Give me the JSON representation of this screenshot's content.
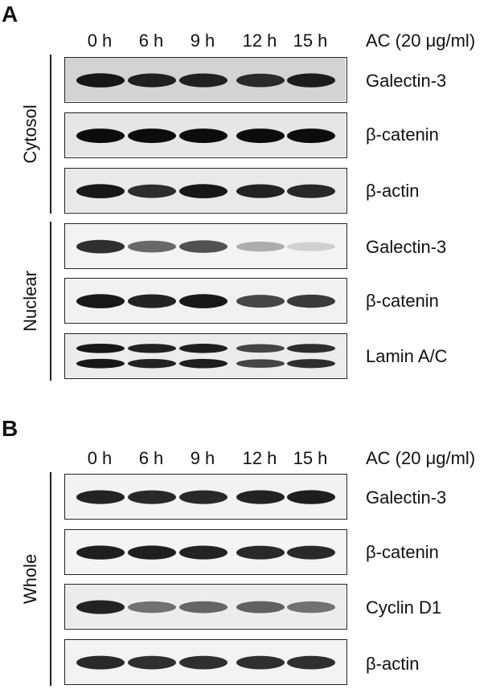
{
  "figure": {
    "panel_a": {
      "letter": "A",
      "lanes": [
        "0 h",
        "6 h",
        "9 h",
        "12 h",
        "15 h"
      ],
      "treatment": "AC (20 μg/ml)",
      "sections": [
        {
          "label": "Cytosol",
          "blots": [
            {
              "protein": "Galectin-3",
              "bg": "#d3d3d3",
              "band_intensity": [
                0.95,
                0.9,
                0.9,
                0.85,
                0.92
              ],
              "double_band": false
            },
            {
              "protein": "β-catenin",
              "bg": "#e6e6e6",
              "band_intensity": [
                1.0,
                1.0,
                1.0,
                1.0,
                1.0
              ],
              "double_band": false
            },
            {
              "protein": "β-actin",
              "bg": "#e9e9e9",
              "band_intensity": [
                0.95,
                0.85,
                0.95,
                0.9,
                0.88
              ],
              "double_band": false
            }
          ]
        },
        {
          "label": "Nuclear",
          "blots": [
            {
              "protein": "Galectin-3",
              "bg": "#f3f3f3",
              "band_intensity": [
                0.85,
                0.6,
                0.7,
                0.3,
                0.15
              ],
              "double_band": false
            },
            {
              "protein": "β-catenin",
              "bg": "#f1f1f1",
              "band_intensity": [
                0.95,
                0.9,
                0.95,
                0.75,
                0.8
              ],
              "double_band": false
            },
            {
              "protein": "Lamin A/C",
              "bg": "#ececec",
              "band_intensity": [
                0.95,
                0.9,
                0.92,
                0.75,
                0.85
              ],
              "double_band": true
            }
          ]
        }
      ]
    },
    "panel_b": {
      "letter": "B",
      "lanes": [
        "0 h",
        "6 h",
        "9 h",
        "12 h",
        "15 h"
      ],
      "treatment": "AC (20 μg/ml)",
      "sections": [
        {
          "label": "Whole",
          "blots": [
            {
              "protein": "Galectin-3",
              "bg": "#f2f2f2",
              "band_intensity": [
                0.9,
                0.88,
                0.88,
                0.9,
                0.92
              ],
              "double_band": false
            },
            {
              "protein": "β-catenin",
              "bg": "#f4f4f4",
              "band_intensity": [
                0.92,
                0.92,
                0.9,
                0.88,
                0.88
              ],
              "double_band": false
            },
            {
              "protein": "Cyclin D1",
              "bg": "#ececec",
              "band_intensity": [
                0.9,
                0.55,
                0.6,
                0.62,
                0.55
              ],
              "double_band": false
            },
            {
              "protein": "β-actin",
              "bg": "#f3f3f3",
              "band_intensity": [
                0.88,
                0.85,
                0.85,
                0.85,
                0.85
              ],
              "double_band": false
            }
          ]
        }
      ]
    }
  }
}
